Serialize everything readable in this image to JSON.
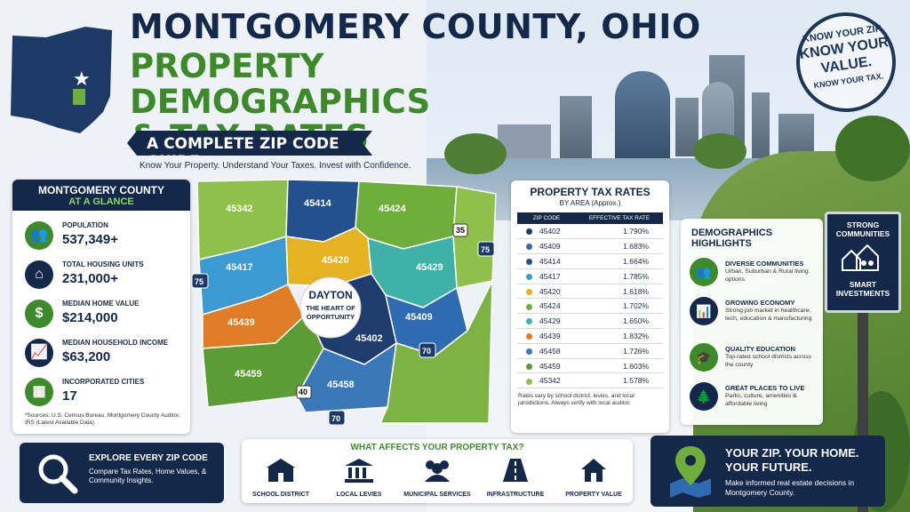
{
  "header": {
    "title_line1": "MONTGOMERY COUNTY, OHIO",
    "title_line2": "PROPERTY DEMOGRAPHICS",
    "title_line3": "& TAX RATES",
    "subtitle": "A COMPLETE ZIP CODE GUIDE",
    "tagline": "Know Your Property. Understand Your Taxes. Invest with Confidence."
  },
  "stamp": {
    "line1": "KNOW YOUR ZIP",
    "line2": "KNOW YOUR",
    "line3": "VALUE.",
    "line4": "KNOW YOUR TAX."
  },
  "glance": {
    "title": "MONTGOMERY COUNTY",
    "subtitle": "AT A GLANCE",
    "stats": [
      {
        "label": "POPULATION",
        "value": "537,349+",
        "icon": "people-icon"
      },
      {
        "label": "TOTAL HOUSING UNITS",
        "value": "231,000+",
        "icon": "house-icon"
      },
      {
        "label": "MEDIAN HOME VALUE",
        "value": "$214,000",
        "icon": "dollar-icon"
      },
      {
        "label": "MEDIAN HOUSEHOLD INCOME",
        "value": "$63,200",
        "icon": "chart-up-icon"
      },
      {
        "label": "INCORPORATED CITIES",
        "value": "17",
        "icon": "buildings-icon"
      }
    ],
    "source": "*Sources: U.S. Census Bureau, Montgomery County Auditor, IRS (Latest Available Data)"
  },
  "map": {
    "center_title": "DAYTON",
    "center_line1": "THE HEART OF",
    "center_line2": "OPPORTUNITY",
    "zips": [
      "45342",
      "45414",
      "45424",
      "45417",
      "45420",
      "45429",
      "45439",
      "45402",
      "45409",
      "45459",
      "45458"
    ],
    "highways": [
      "75",
      "35",
      "75",
      "70",
      "40",
      "70"
    ]
  },
  "tax": {
    "title": "PROPERTY TAX RATES",
    "subtitle": "BY AREA (Approx.)",
    "col_zip": "ZIP CODE",
    "col_rate": "EFFECTIVE TAX RATE",
    "rows": [
      {
        "zip": "45402",
        "rate": "1.790%",
        "color": "#1f3c6e"
      },
      {
        "zip": "45409",
        "rate": "1.683%",
        "color": "#2f6bb0"
      },
      {
        "zip": "45414",
        "rate": "1.664%",
        "color": "#25508f"
      },
      {
        "zip": "45417",
        "rate": "1.785%",
        "color": "#3a9ad1"
      },
      {
        "zip": "45420",
        "rate": "1.618%",
        "color": "#e7b21f"
      },
      {
        "zip": "45424",
        "rate": "1.702%",
        "color": "#6fae3a"
      },
      {
        "zip": "45429",
        "rate": "1.650%",
        "color": "#3fb2a8"
      },
      {
        "zip": "45439",
        "rate": "1.832%",
        "color": "#e07c26"
      },
      {
        "zip": "45458",
        "rate": "1.726%",
        "color": "#3b78b8"
      },
      {
        "zip": "45459",
        "rate": "1.603%",
        "color": "#5c9c34"
      },
      {
        "zip": "45342",
        "rate": "1.578%",
        "color": "#8fc04a"
      }
    ],
    "note": "Rates vary by school district, levies, and local jurisdictions. Always verify with local auditor."
  },
  "demographics": {
    "title_line1": "DEMOGRAPHICS",
    "title_line2": "HIGHLIGHTS",
    "items": [
      {
        "title": "DIVERSE COMMUNITIES",
        "desc": "Urban, Suburban & Rural living options",
        "icon": "community-icon"
      },
      {
        "title": "GROWING ECONOMY",
        "desc": "Strong job market in healthcare, tech, education & manufacturing",
        "icon": "growth-chart-icon"
      },
      {
        "title": "QUALITY EDUCATION",
        "desc": "Top-rated school districts across the county",
        "icon": "graduation-cap-icon"
      },
      {
        "title": "GREAT PLACES TO LIVE",
        "desc": "Parks, culture, amenities & affordable living",
        "icon": "trees-icon"
      }
    ]
  },
  "sign": {
    "top_line1": "STRONG",
    "top_line2": "COMMUNITIES",
    "bottom_line1": "SMART",
    "bottom_line2": "INVESTMENTS"
  },
  "explore": {
    "title": "EXPLORE EVERY ZIP CODE",
    "desc": "Compare Tax Rates, Home Values, & Community Insights."
  },
  "affects": {
    "title": "WHAT AFFECTS YOUR PROPERTY TAX?",
    "factors": [
      {
        "label": "SCHOOL DISTRICT",
        "icon": "school-icon"
      },
      {
        "label": "LOCAL LEVIES",
        "icon": "government-building-icon"
      },
      {
        "label": "MUNICIPAL SERVICES",
        "icon": "people-group-icon"
      },
      {
        "label": "INFRASTRUCTURE",
        "icon": "road-icon"
      },
      {
        "label": "PROPERTY VALUE",
        "icon": "house-icon"
      }
    ]
  },
  "future": {
    "title_line1": "YOUR ZIP. YOUR HOME.",
    "title_line2": "YOUR FUTURE.",
    "desc": "Make informed real estate decisions in Montgomery County."
  }
}
